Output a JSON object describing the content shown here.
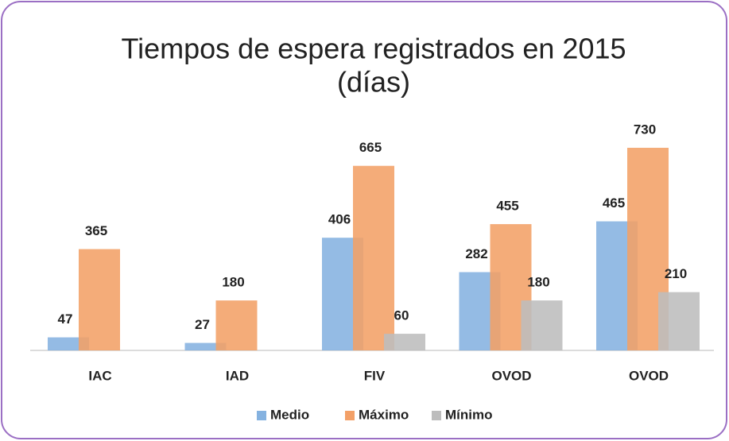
{
  "chart_data": {
    "type": "bar",
    "title": "Tiempos de espera registrados en 2015",
    "subtitle": "(días)",
    "categories": [
      "IAC",
      "IAD",
      "FIV",
      "OVOD",
      "OVOD"
    ],
    "series": [
      {
        "name": "Medio",
        "color": "#85b2e0",
        "values": [
          47,
          27,
          406,
          282,
          465
        ]
      },
      {
        "name": "Máximo",
        "color": "#f3a067",
        "values": [
          365,
          180,
          665,
          455,
          730
        ]
      },
      {
        "name": "Mínimo",
        "color": "#bdbdbd",
        "values": [
          null,
          null,
          60,
          180,
          210
        ]
      }
    ],
    "legend": "bottom"
  }
}
